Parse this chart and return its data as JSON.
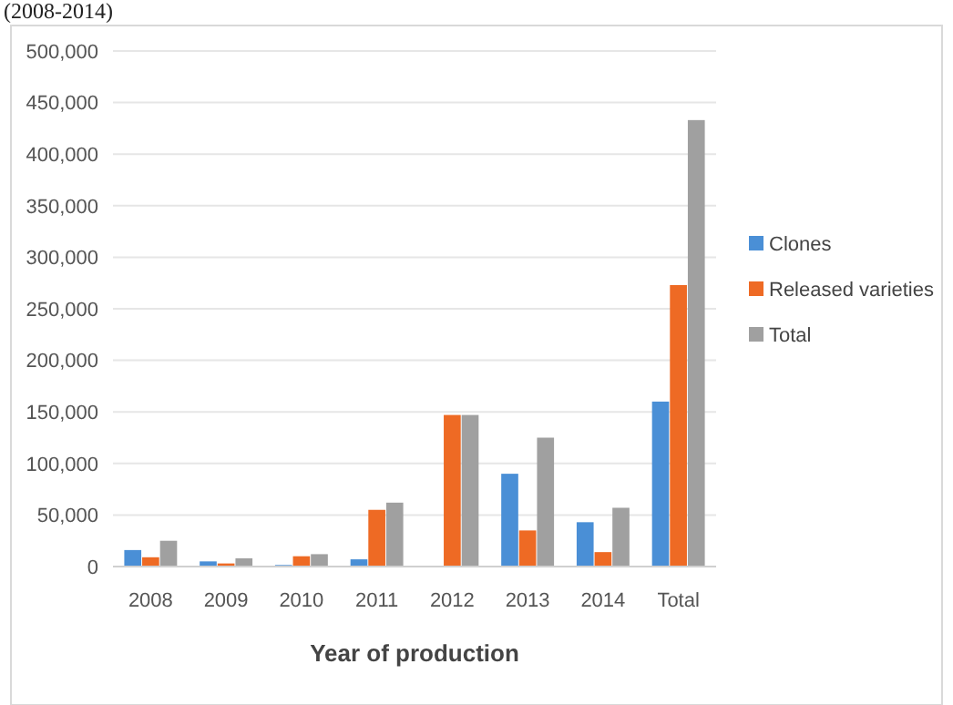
{
  "chart_data": {
    "type": "bar",
    "title": "(2008-2014)",
    "xlabel": "Year of production",
    "categories": [
      "2008",
      "2009",
      "2010",
      "2011",
      "2012",
      "2013",
      "2014",
      "Total"
    ],
    "series": [
      {
        "name": "Clones",
        "color": "#4a8fd6",
        "values": [
          16000,
          5000,
          1500,
          7000,
          0,
          90000,
          43000,
          160000
        ]
      },
      {
        "name": "Released varieties",
        "color": "#ee6a24",
        "values": [
          9000,
          3000,
          10000,
          55000,
          147000,
          35000,
          14000,
          273000
        ]
      },
      {
        "name": "Total",
        "color": "#a0a0a0",
        "values": [
          25000,
          8000,
          12000,
          62000,
          147000,
          125000,
          57000,
          433000
        ]
      }
    ],
    "ylim": [
      0,
      500000
    ],
    "yticks": [
      {
        "value": 0,
        "label": "0"
      },
      {
        "value": 50000,
        "label": "50,000"
      },
      {
        "value": 100000,
        "label": "100,000"
      },
      {
        "value": 150000,
        "label": "150,000"
      },
      {
        "value": 200000,
        "label": "200,000"
      },
      {
        "value": 250000,
        "label": "250,000"
      },
      {
        "value": 300000,
        "label": "300,000"
      },
      {
        "value": 350000,
        "label": "350,000"
      },
      {
        "value": 400000,
        "label": "400,000"
      },
      {
        "value": 450000,
        "label": "450,000"
      },
      {
        "value": 500000,
        "label": "500,000"
      }
    ],
    "grid": "y",
    "legend": "right"
  }
}
